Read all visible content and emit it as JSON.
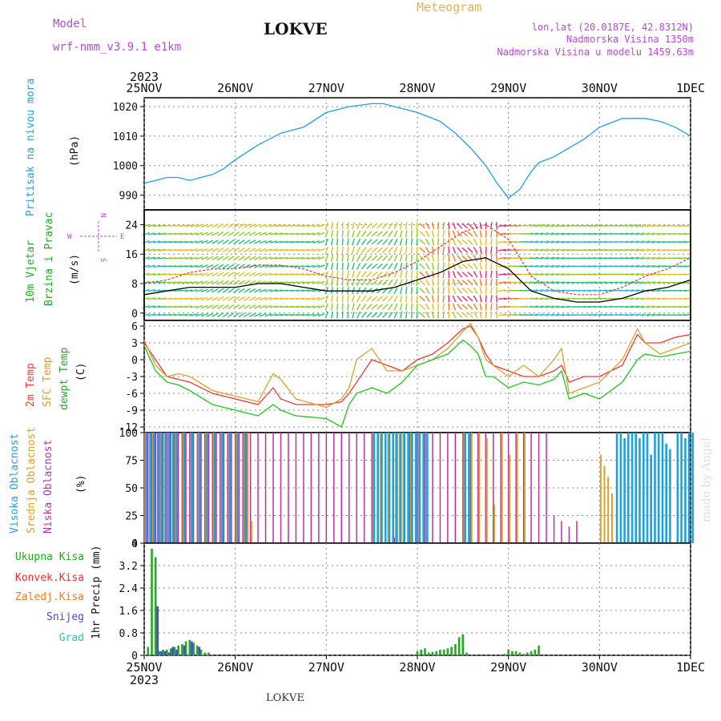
{
  "header": {
    "model_label": "Model",
    "model_name": "wrf-nmm_v3.9.1 e1km",
    "title": "LOKVE",
    "meteogram_label": "Meteogram",
    "coords": "lon,lat (20.0187E, 42.8312N)",
    "altitude": "Nadmorska Visina 1350m",
    "model_altitude": "Nadmorska Visina u modelu 1459.63m",
    "year_top": "2023"
  },
  "footer": {
    "year_bottom": "2023",
    "station": "LOKVE",
    "credit": "made by Angel"
  },
  "colors": {
    "pressure": "#1da2e0",
    "wind_speed": "#000000",
    "gust": "#e83030",
    "temp2m": "#e83a3a",
    "sfc_temp": "#d9a030",
    "dewpt": "#22c422",
    "cloud_high": "#1da2e0",
    "cloud_mid": "#d9a030",
    "cloud_low": "#c030a0",
    "precip_total": "#22aa22",
    "precip_conv": "#e83030",
    "precip_frozen": "#f07d22",
    "precip_snow": "#4a4ad8",
    "precip_grad": "#22c4b4",
    "grid": "#888888",
    "model_text": "#b44bd2",
    "meteogram_text": "#e6b04c"
  },
  "x_axis": {
    "ticks": [
      "25NOV",
      "26NOV",
      "27NOV",
      "28NOV",
      "29NOV",
      "30NOV",
      "1DEC"
    ],
    "range_hours": [
      0,
      144
    ]
  },
  "compass": {
    "n": "N",
    "s": "S",
    "e": "E",
    "w": "W"
  },
  "panels": {
    "pressure": {
      "ylabel_main": "Pritisak na nivou mora",
      "unit": "(hPa)"
    },
    "wind": {
      "ylabel_1": "10m Vjetar",
      "ylabel_2": "Brzina i Pravac",
      "unit": "(m/s)"
    },
    "temp": {
      "ylabel_1": "2m Temp",
      "ylabel_2": "SFC Temp",
      "ylabel_3": "dewpt Temp",
      "unit": "(C)"
    },
    "cloud": {
      "ylabel_1": "Visoka Oblacnost",
      "ylabel_2": "Srednja Oblacnost",
      "ylabel_3": "Niska Oblacnost",
      "unit": "(%)"
    },
    "precip": {
      "ylabel_1": "Ukupna Kisa",
      "ylabel_2": "Konvek.Kisa",
      "ylabel_3": "Zaledj.Kisa",
      "ylabel_4": "Snijeg",
      "ylabel_5": "Grad",
      "unit": "1hr Precip (mm)"
    }
  },
  "chart_data": [
    {
      "type": "line",
      "panel": "pressure",
      "ylabel": "Pritisak na nivou mora (hPa)",
      "ylim": [
        985,
        1023
      ],
      "yticks": [
        990,
        1000,
        1010,
        1020
      ],
      "grid": true,
      "x": [
        0,
        3,
        6,
        9,
        12,
        15,
        18,
        21,
        24,
        30,
        36,
        42,
        48,
        54,
        60,
        63,
        66,
        72,
        78,
        82,
        86,
        90,
        93,
        96,
        99,
        102,
        104,
        106,
        108,
        112,
        116,
        120,
        126,
        132,
        136,
        140,
        144
      ],
      "series": [
        {
          "values": [
            994,
            995,
            996,
            996,
            995,
            996,
            997,
            999,
            1002,
            1007,
            1011,
            1013,
            1018,
            1020,
            1021,
            1021,
            1020,
            1018,
            1015,
            1011,
            1006,
            1000,
            994,
            989,
            992,
            998,
            1001,
            1002,
            1003,
            1006,
            1009,
            1013,
            1016,
            1016,
            1015,
            1013,
            1010
          ]
        }
      ]
    },
    {
      "type": "line",
      "panel": "wind",
      "ylabel": "10m Vjetar Brzina i Pravac (m/s)",
      "ylim": [
        -2,
        28
      ],
      "yticks": [
        0,
        8,
        16,
        24
      ],
      "grid": true,
      "x": [
        0,
        6,
        12,
        18,
        24,
        30,
        36,
        42,
        48,
        54,
        60,
        66,
        72,
        78,
        84,
        90,
        96,
        102,
        108,
        114,
        120,
        126,
        132,
        138,
        144
      ],
      "series": [
        {
          "values": [
            5,
            6,
            7,
            7,
            7,
            8,
            8,
            7,
            6,
            6,
            6,
            7,
            9,
            11,
            14,
            15,
            12,
            6,
            4,
            3,
            3,
            4,
            6,
            7,
            9
          ]
        },
        {
          "values": [
            8,
            9,
            11,
            12,
            12,
            13,
            13,
            12,
            10,
            9,
            9,
            11,
            14,
            18,
            22,
            24,
            20,
            10,
            6,
            5,
            5,
            7,
            10,
            12,
            15
          ]
        }
      ]
    },
    {
      "type": "line",
      "panel": "temp",
      "ylabel": "2m Temp / SFC Temp / dewpt Temp (C)",
      "ylim": [
        -13,
        7
      ],
      "yticks": [
        -12,
        -9,
        -6,
        -3,
        0,
        3,
        6
      ],
      "grid": true,
      "x": [
        0,
        3,
        6,
        9,
        12,
        18,
        24,
        30,
        34,
        36,
        40,
        48,
        52,
        54,
        56,
        60,
        64,
        68,
        72,
        76,
        80,
        84,
        86,
        88,
        90,
        92,
        96,
        100,
        104,
        108,
        110,
        112,
        116,
        120,
        126,
        130,
        132,
        136,
        140,
        144
      ],
      "series": [
        {
          "name": "2m Temp",
          "values": [
            3,
            0,
            -3,
            -3.5,
            -4,
            -6,
            -7,
            -8,
            -5,
            -7,
            -8,
            -8,
            -7.5,
            -6,
            -4,
            0,
            -1,
            -2,
            0,
            1,
            3,
            5.5,
            6,
            4,
            1,
            -1,
            -2,
            -3,
            -3,
            -2,
            -1,
            -4,
            -3,
            -3,
            -1,
            4.5,
            3,
            3,
            4,
            4.5
          ]
        },
        {
          "name": "SFC Temp",
          "values": [
            3.5,
            -1,
            -3,
            -2.5,
            -3,
            -5.5,
            -6.5,
            -7.5,
            -2.5,
            -3.5,
            -7,
            -8.5,
            -7,
            -5,
            0,
            2,
            -2,
            -2,
            -1,
            0,
            2,
            5,
            6.5,
            4,
            0,
            -1,
            -3,
            -1,
            -3,
            0,
            2,
            -6,
            -5,
            -4,
            0,
            5.5,
            3,
            1,
            2,
            3
          ]
        },
        {
          "name": "dewpt Temp",
          "values": [
            2.5,
            -2,
            -4,
            -4.5,
            -5.5,
            -8,
            -9,
            -10,
            -8,
            -9,
            -10,
            -10.5,
            -12,
            -8,
            -6,
            -5,
            -6,
            -4,
            -1,
            0,
            1,
            3.5,
            2.5,
            1,
            -3,
            -3,
            -5,
            -4,
            -4.5,
            -3.5,
            -2,
            -7,
            -6,
            -7,
            -4,
            0,
            1,
            0.5,
            1,
            1.5
          ]
        }
      ]
    },
    {
      "type": "bar",
      "panel": "cloud",
      "ylabel": "Visoka / Srednja / Niska Oblacnost (%)",
      "ylim": [
        0,
        100
      ],
      "yticks": [
        0,
        25,
        50,
        75,
        100
      ],
      "grid": true,
      "series": [
        {
          "name": "Niska Oblacnost",
          "hours": [
            0,
            1,
            2,
            3,
            4,
            5,
            6,
            7,
            8,
            9,
            10,
            11,
            12,
            13,
            14,
            15,
            16,
            17,
            18,
            19,
            20,
            21,
            22,
            23,
            24,
            25,
            26,
            27,
            28,
            30,
            32,
            34,
            36,
            38,
            40,
            42,
            44,
            46,
            48,
            50,
            52,
            54,
            56,
            58,
            60,
            66,
            70,
            72,
            74,
            76,
            78,
            80,
            82,
            84,
            86,
            88,
            90,
            92,
            94,
            96,
            98,
            100,
            102,
            104,
            106,
            108,
            110,
            112,
            114
          ],
          "values": [
            100,
            100,
            100,
            100,
            100,
            100,
            100,
            100,
            100,
            100,
            100,
            100,
            100,
            100,
            100,
            100,
            100,
            100,
            100,
            100,
            100,
            100,
            100,
            100,
            100,
            100,
            100,
            100,
            100,
            100,
            100,
            100,
            100,
            100,
            100,
            100,
            100,
            100,
            100,
            100,
            100,
            100,
            100,
            100,
            100,
            5,
            100,
            100,
            100,
            100,
            100,
            100,
            100,
            100,
            100,
            100,
            100,
            100,
            100,
            100,
            100,
            100,
            100,
            100,
            100,
            25,
            20,
            15,
            20
          ]
        },
        {
          "name": "Srednja Oblacnost",
          "hours": [
            0,
            2,
            4,
            6,
            8,
            10,
            12,
            14,
            16,
            18,
            20,
            22,
            24,
            26,
            27,
            28,
            60,
            62,
            64,
            66,
            67,
            68,
            70,
            72,
            74,
            84,
            86,
            88,
            90,
            92,
            94,
            96,
            98,
            100,
            120,
            121,
            122,
            123
          ],
          "values": [
            100,
            100,
            100,
            100,
            100,
            100,
            100,
            100,
            100,
            100,
            100,
            100,
            100,
            100,
            100,
            20,
            100,
            100,
            100,
            100,
            100,
            100,
            100,
            100,
            100,
            100,
            100,
            100,
            95,
            35,
            100,
            80,
            100,
            100,
            80,
            70,
            60,
            45
          ]
        },
        {
          "name": "Visoka Oblacnost",
          "hours": [
            0,
            1,
            2,
            3,
            4,
            5,
            6,
            7,
            8,
            10,
            12,
            14,
            16,
            18,
            20,
            22,
            24,
            26,
            60,
            61,
            62,
            63,
            64,
            65,
            66,
            67,
            68,
            69,
            70,
            71,
            72,
            73,
            74,
            84,
            85,
            124,
            125,
            126,
            127,
            128,
            129,
            130,
            131,
            132,
            133,
            134,
            135,
            136,
            137,
            138,
            140,
            141,
            142,
            143,
            144
          ],
          "values": [
            100,
            100,
            100,
            100,
            100,
            100,
            100,
            100,
            100,
            100,
            100,
            100,
            100,
            100,
            100,
            100,
            100,
            100,
            100,
            100,
            100,
            100,
            100,
            100,
            100,
            100,
            100,
            100,
            100,
            100,
            100,
            100,
            100,
            100,
            100,
            100,
            100,
            95,
            100,
            100,
            100,
            95,
            100,
            100,
            80,
            100,
            100,
            100,
            90,
            85,
            100,
            100,
            95,
            100,
            100
          ]
        }
      ]
    },
    {
      "type": "bar",
      "panel": "precip",
      "ylabel": "1hr Precip (mm)",
      "ylim": [
        0,
        4
      ],
      "yticks": [
        0,
        0.8,
        1.6,
        2.4,
        3.2,
        4
      ],
      "grid": true,
      "series": [
        {
          "name": "Ukupna Kisa",
          "hours": [
            1,
            2,
            3,
            4,
            5,
            6,
            7,
            8,
            9,
            10,
            11,
            12,
            13,
            14,
            15,
            16,
            17,
            72,
            73,
            74,
            75,
            76,
            77,
            78,
            79,
            80,
            81,
            82,
            83,
            84,
            85,
            95,
            96,
            97,
            98,
            99,
            100,
            101,
            102,
            103,
            104
          ],
          "values": [
            0.3,
            3.8,
            3.5,
            0.15,
            0.2,
            0.2,
            0.25,
            0.3,
            0.35,
            0.4,
            0.5,
            0.55,
            0.45,
            0.35,
            0.2,
            0.1,
            0.1,
            0.15,
            0.2,
            0.25,
            0.1,
            0.12,
            0.15,
            0.2,
            0.2,
            0.25,
            0.3,
            0.4,
            0.65,
            0.75,
            0.1,
            0.05,
            0.2,
            0.15,
            0.15,
            0.1,
            0.05,
            0.1,
            0.15,
            0.2,
            0.35
          ]
        },
        {
          "name": "Snijeg",
          "hours": [
            3,
            4,
            5,
            6,
            7,
            8,
            10,
            12,
            14
          ],
          "values": [
            1.75,
            0.15,
            0.15,
            0.1,
            0.3,
            0.2,
            0.35,
            0.5,
            0.3
          ]
        }
      ]
    }
  ]
}
